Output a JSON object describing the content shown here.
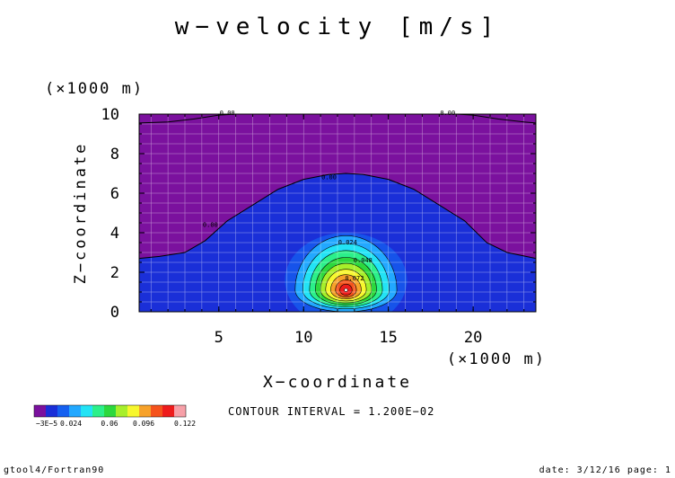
{
  "chart_data": {
    "type": "contour",
    "title": "w−velocity [m/s]",
    "xlabel": "X−coordinate",
    "ylabel": "Z−coordinate",
    "x_unit": "(×1000 m)",
    "y_unit": "(×1000 m)",
    "xlim": [
      0.3,
      23.7
    ],
    "ylim": [
      0,
      10
    ],
    "x_ticks": [
      "5",
      "10",
      "15",
      "20"
    ],
    "y_ticks": [
      "0",
      "2",
      "4",
      "6",
      "8",
      "10"
    ],
    "grid": true,
    "contour_interval_text": "CONTOUR INTERVAL = 1.200E−02",
    "colorbar": {
      "colors": [
        "#7b119e",
        "#1a2fd8",
        "#1560f0",
        "#22a8ff",
        "#22e3f5",
        "#2bf08a",
        "#2cd83d",
        "#a7ef2b",
        "#f7f72e",
        "#f7a22a",
        "#f5531c",
        "#ee1c1c",
        "#f7a0a8"
      ],
      "tick_labels": [
        "−3E−5",
        "0.024",
        "0.06",
        "0.096",
        "0.122"
      ]
    },
    "contour_labels": [
      "0.00",
      "0.00",
      "0.00",
      "0.00",
      "0.024",
      "0.048",
      "0.072"
    ],
    "max_location": {
      "x": 12.5,
      "z": 1.1
    },
    "max_value": 0.122,
    "zero_contour": {
      "x": [
        0.3,
        1.5,
        3,
        4.2,
        5.5,
        7,
        8.5,
        10,
        11.5,
        12.5,
        13.5,
        15,
        16.5,
        18,
        19.5,
        20.8,
        22,
        23.7
      ],
      "z": [
        2.7,
        2.8,
        3.0,
        3.6,
        4.6,
        5.4,
        6.2,
        6.7,
        6.95,
        7.0,
        6.95,
        6.7,
        6.2,
        5.4,
        4.6,
        3.5,
        3.0,
        2.7
      ]
    },
    "top_zero_contour": {
      "x": [
        0.3,
        2,
        3.5,
        5,
        6,
        7,
        18,
        19,
        20,
        21.5,
        23,
        23.7
      ],
      "z": [
        9.55,
        9.6,
        9.75,
        9.95,
        10,
        10,
        10,
        10,
        9.95,
        9.75,
        9.6,
        9.55
      ]
    }
  },
  "footer": {
    "left": "gtool4/Fortran90",
    "right": "date: 3/12/16 page: 1"
  }
}
